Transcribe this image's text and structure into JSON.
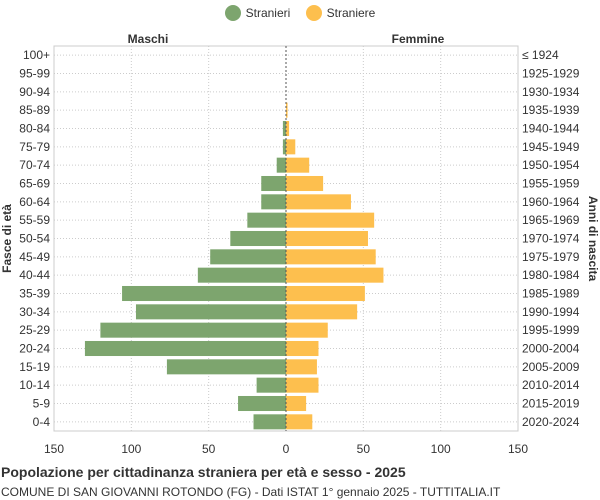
{
  "chart_data": {
    "type": "bar",
    "orientation": "horizontal",
    "title": "Popolazione per cittadinanza straniera per età e sesso - 2025",
    "subtitle": "COMUNE DI SAN GIOVANNI ROTONDO (FG) - Dati ISTAT 1° gennaio 2025 - TUTTITALIA.IT",
    "left_header": "Maschi",
    "right_header": "Femmine",
    "ylabel_left": "Fasce di età",
    "ylabel_right": "Anni di nascita",
    "age_groups": [
      "100+",
      "95-99",
      "90-94",
      "85-89",
      "80-84",
      "75-79",
      "70-74",
      "65-69",
      "60-64",
      "55-59",
      "50-54",
      "45-49",
      "40-44",
      "35-39",
      "30-34",
      "25-29",
      "20-24",
      "15-19",
      "10-14",
      "5-9",
      "0-4"
    ],
    "birth_years": [
      "≤ 1924",
      "1925-1929",
      "1930-1934",
      "1935-1939",
      "1940-1944",
      "1945-1949",
      "1950-1954",
      "1955-1959",
      "1960-1964",
      "1965-1969",
      "1970-1974",
      "1975-1979",
      "1980-1984",
      "1985-1989",
      "1990-1994",
      "1995-1999",
      "2000-2004",
      "2005-2009",
      "2010-2014",
      "2015-2019",
      "2020-2024"
    ],
    "series": [
      {
        "name": "Stranieri",
        "color": "#7da56e",
        "values": [
          0,
          0,
          0,
          0,
          2,
          2,
          6,
          16,
          16,
          25,
          36,
          49,
          57,
          106,
          97,
          120,
          130,
          77,
          19,
          31,
          21
        ]
      },
      {
        "name": "Straniere",
        "color": "#fdbf4e",
        "values": [
          0,
          0,
          0,
          1,
          2,
          6,
          15,
          24,
          42,
          57,
          53,
          58,
          63,
          51,
          46,
          27,
          21,
          20,
          21,
          13,
          17
        ]
      }
    ],
    "xlim": [
      -150,
      150
    ],
    "xticks": [
      -150,
      -100,
      -50,
      0,
      50,
      100,
      150
    ],
    "xtick_labels": [
      "150",
      "100",
      "50",
      "0",
      "50",
      "100",
      "150"
    ],
    "grid": true,
    "legend_position": "top-center"
  }
}
